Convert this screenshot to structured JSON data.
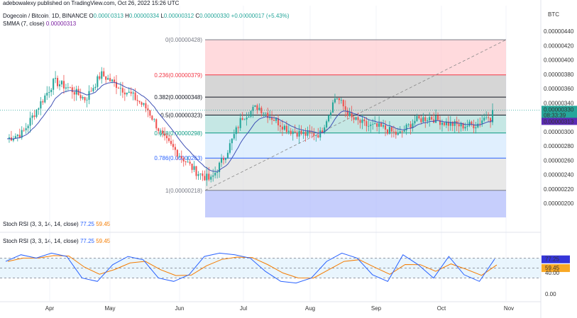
{
  "header": {
    "publisher": "adebowalexy published on TradingView.com, Oct 26, 2022 15:26 UTC",
    "symbol": "Dogecoin / Bitcoin, 1D, BINANCE",
    "ohlc": {
      "o_label": "O",
      "o": "0.00000313",
      "h_label": "H",
      "h": "0.00000334",
      "l_label": "L",
      "l": "0.00000312",
      "c_label": "C",
      "c": "0.00000330",
      "change": "+0.00000017 (+5.43%)"
    },
    "sma_label": "SMMA (7, close)",
    "sma_value": "0.00000313"
  },
  "price_axis": {
    "currency": "BTC",
    "ticks": [
      "0.00000440",
      "0.00000420",
      "0.00000400",
      "0.00000380",
      "0.00000360",
      "0.00000340",
      "0.00000320",
      "0.00000300",
      "0.00000280",
      "0.00000260",
      "0.00000240",
      "0.00000220",
      "0.00000200"
    ],
    "last_price": "0.00000330",
    "countdown": "08:33:39",
    "sma_tag": "0.00000313"
  },
  "fib": {
    "levels": [
      {
        "label": "0(0.00000428)",
        "price": 4.28e-06,
        "color": "#787b86"
      },
      {
        "label": "0.236(0.00000379)",
        "price": 3.79e-06,
        "color": "#f23645"
      },
      {
        "label": "0.382(0.00000348)",
        "price": 3.48e-06,
        "color": "#131722"
      },
      {
        "label": "0.5(0.00000323)",
        "price": 3.23e-06,
        "color": "#131722"
      },
      {
        "label": "0.618(0.00000298)",
        "price": 2.98e-06,
        "color": "#089981"
      },
      {
        "label": "0.786(0.00000263)",
        "price": 2.63e-06,
        "color": "#2962ff"
      },
      {
        "label": "1(0.00000218)",
        "price": 2.18e-06,
        "color": "#787b86"
      }
    ],
    "bands": [
      "#ffcdd2",
      "#c8c8c8",
      "#c8c8c8",
      "#b2dfdb",
      "#d6eafd",
      "#e0e0e0",
      "#b3bdfb"
    ]
  },
  "indicator1": {
    "label": "Stoch RSI (3, 3, 14, 14, close)",
    "k": "77.25",
    "d": "59.45"
  },
  "indicator2": {
    "label": "Stoch RSI (3, 3, 14, 14, close)",
    "k": "77.25",
    "d": "59.45"
  },
  "rsi_axis": {
    "k_tag": "77.25",
    "d_tag": "59.45",
    "ticks": [
      "40.00",
      "0.00"
    ]
  },
  "time_axis": [
    "Apr",
    "May",
    "Jun",
    "Jul",
    "Aug",
    "Sep",
    "Oct",
    "Nov"
  ],
  "colors": {
    "up": "#26a69a",
    "down": "#ef5350",
    "sma": "#3f51b5",
    "k": "#2962ff",
    "d": "#f57c00",
    "last": "#26a69a",
    "sma_tag": "#5b2bb5"
  },
  "chart_data": {
    "type": "candlestick",
    "title": "Dogecoin / Bitcoin, 1D, BINANCE",
    "ylabel": "BTC",
    "ylim": [
      1.9e-06,
      4.5e-06
    ],
    "x_ticks": [
      "Apr",
      "May",
      "Jun",
      "Jul",
      "Aug",
      "Sep",
      "Oct",
      "Nov"
    ],
    "price_series": [
      [
        "Mar 15",
        2.9e-06
      ],
      [
        "Mar 22",
        2.98e-06
      ],
      [
        "Apr 01",
        3.35e-06
      ],
      [
        "Apr 08",
        3.7e-06
      ],
      [
        "Apr 16",
        3.6e-06
      ],
      [
        "Apr 24",
        3.45e-06
      ],
      [
        "May 01",
        3.8e-06
      ],
      [
        "May 08",
        3.65e-06
      ],
      [
        "May 16",
        3.5e-06
      ],
      [
        "May 24",
        3.3e-06
      ],
      [
        "Jun 01",
        2.9e-06
      ],
      [
        "Jun 08",
        2.68e-06
      ],
      [
        "Jun 14",
        2.45e-06
      ],
      [
        "Jun 18",
        2.32e-06
      ],
      [
        "Jun 22",
        2.7e-06
      ],
      [
        "Jun 28",
        3.2e-06
      ],
      [
        "Jul 05",
        3.35e-06
      ],
      [
        "Jul 12",
        3.18e-06
      ],
      [
        "Jul 20",
        3.02e-06
      ],
      [
        "Jul 28",
        2.96e-06
      ],
      [
        "Aug 05",
        2.97e-06
      ],
      [
        "Aug 13",
        3.5e-06
      ],
      [
        "Aug 20",
        3.18e-06
      ],
      [
        "Aug 28",
        3.08e-06
      ],
      [
        "Sep 05",
        3.05e-06
      ],
      [
        "Sep 13",
        2.95e-06
      ],
      [
        "Sep 21",
        3.15e-06
      ],
      [
        "Sep 28",
        3.2e-06
      ],
      [
        "Oct 05",
        3.12e-06
      ],
      [
        "Oct 12",
        3.08e-06
      ],
      [
        "Oct 19",
        3.1e-06
      ],
      [
        "Oct 26",
        3.3e-06
      ]
    ],
    "stoch_rsi": {
      "k_last": 77.25,
      "d_last": 59.45,
      "levels": [
        80,
        20
      ],
      "k_series": [
        70,
        90,
        80,
        95,
        85,
        20,
        10,
        60,
        85,
        75,
        20,
        10,
        30,
        85,
        95,
        90,
        80,
        40,
        10,
        5,
        20,
        70,
        95,
        80,
        30,
        10,
        90,
        60,
        20,
        85,
        30,
        10,
        77.25
      ]
    }
  }
}
